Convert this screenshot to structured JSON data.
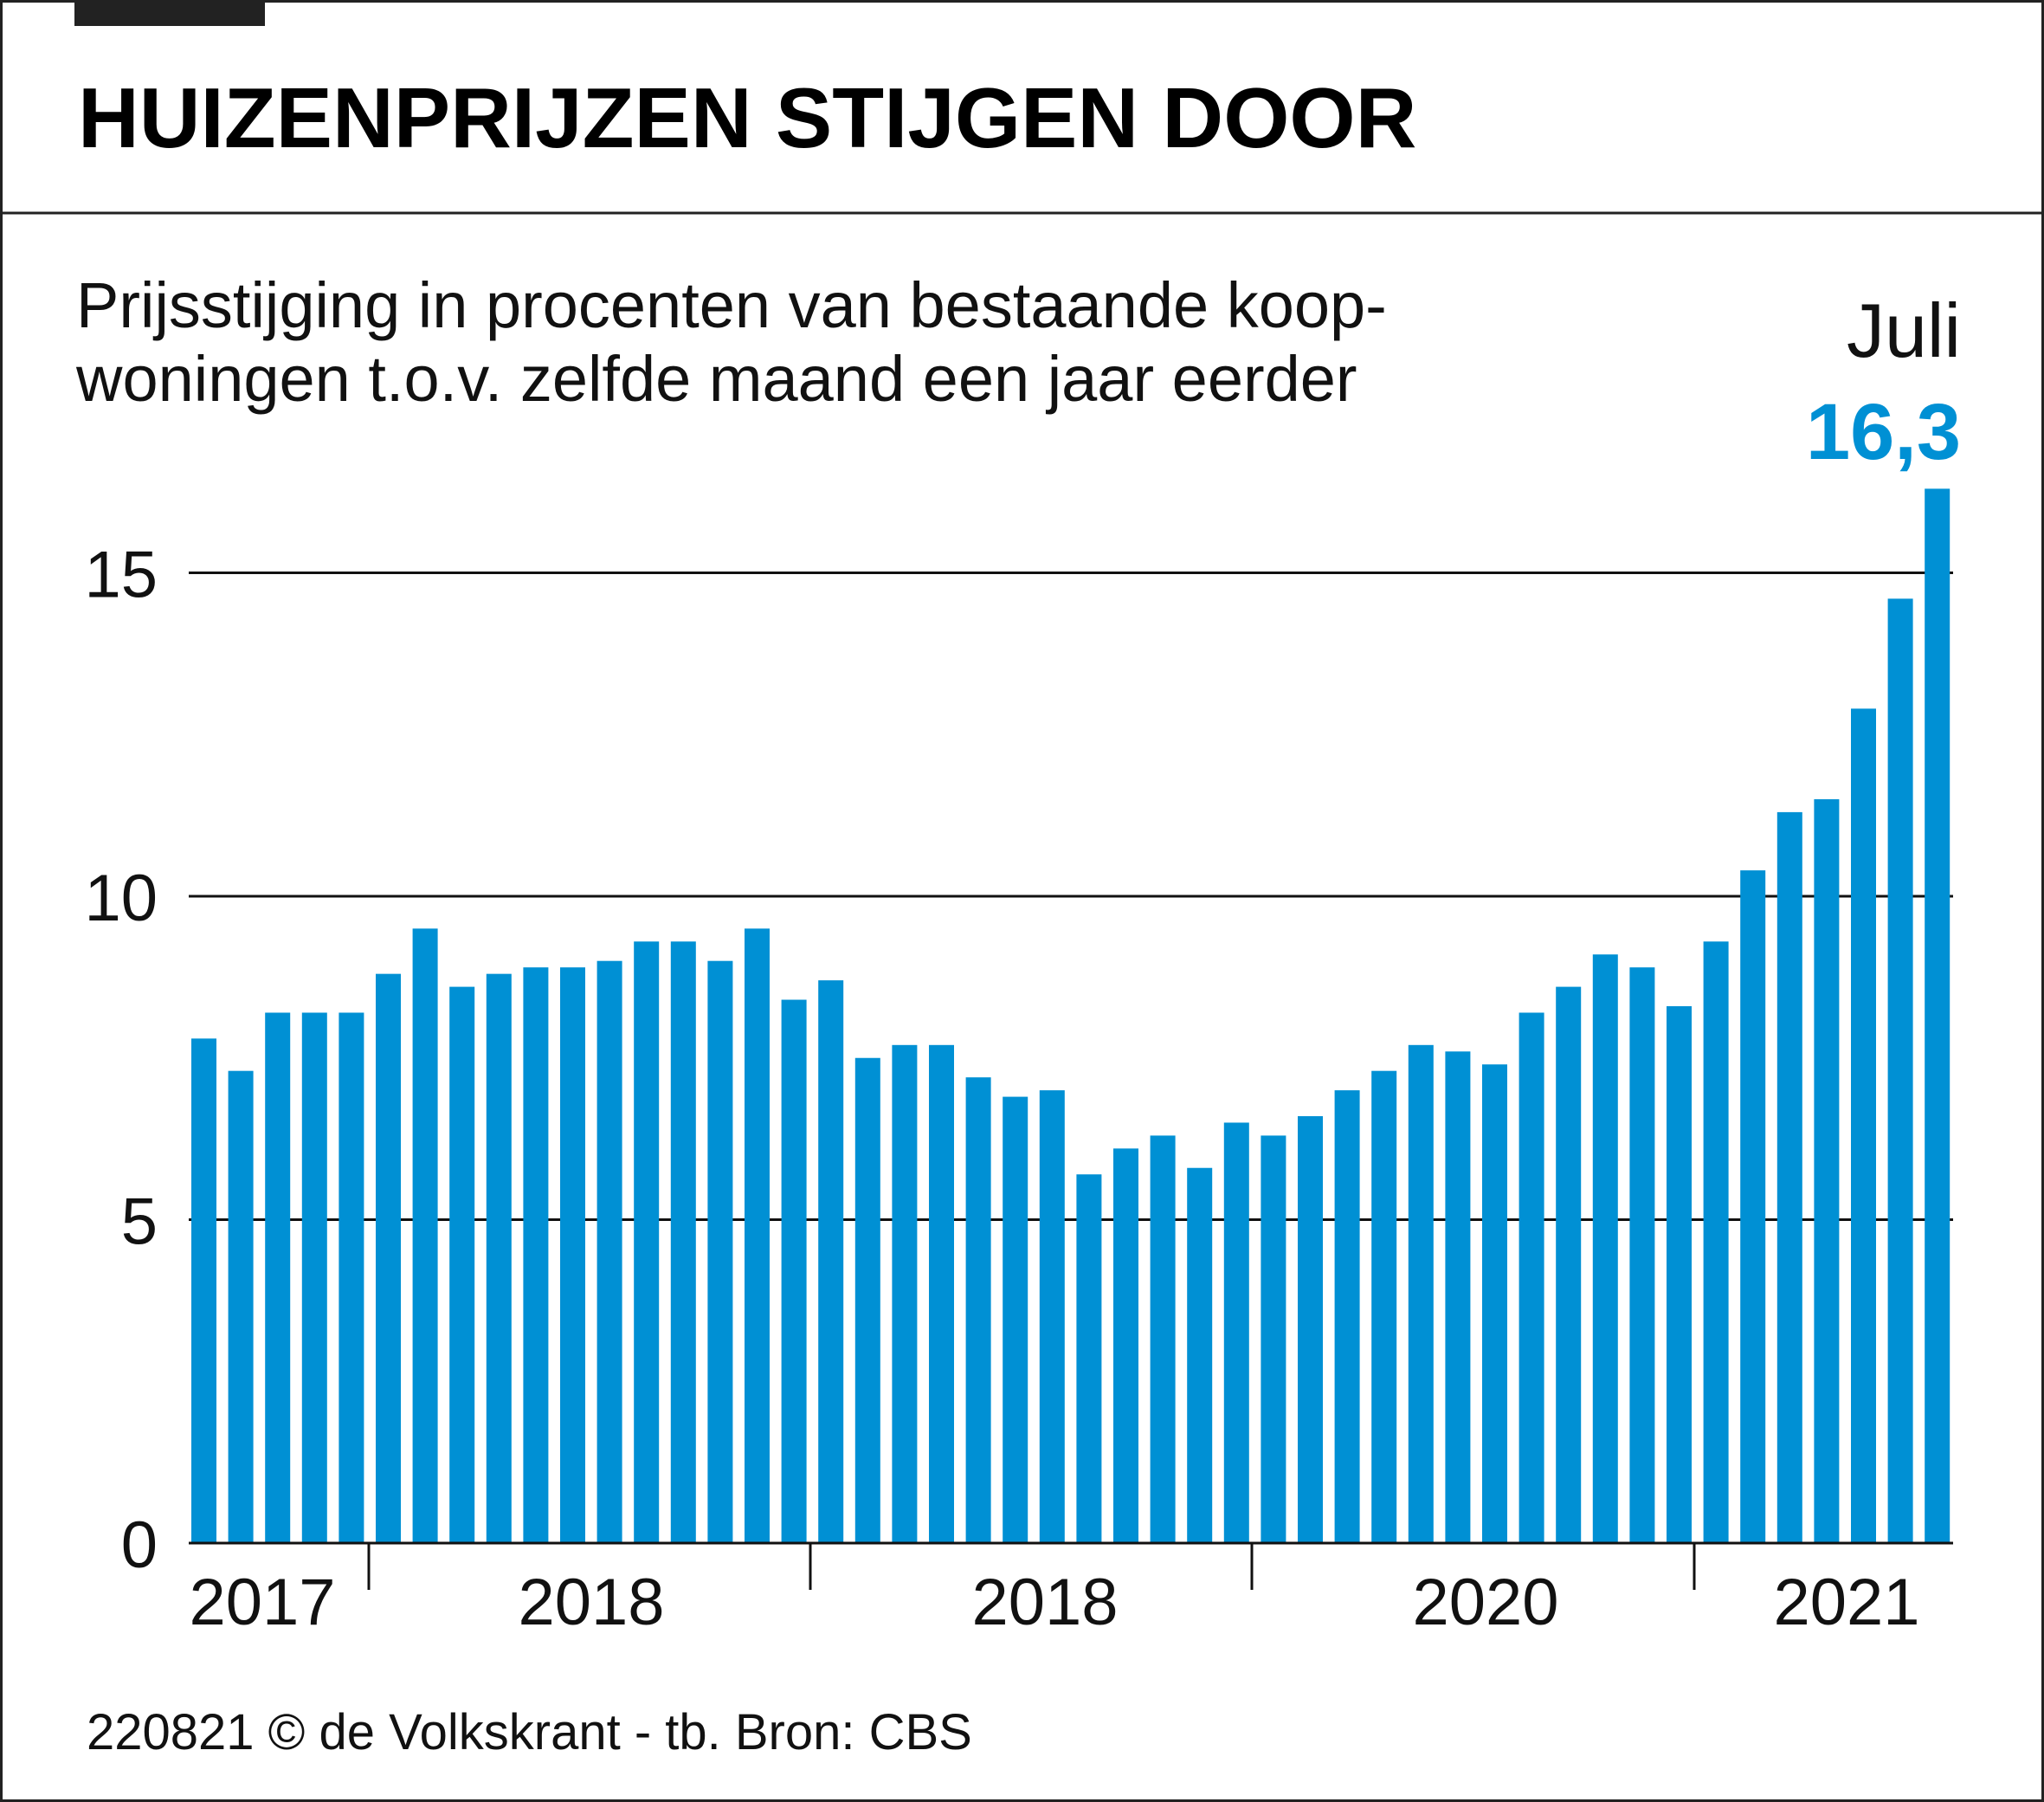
{
  "title": "HUIZENPRIJZEN STIJGEN DOOR",
  "subtitle": [
    "Prijsstijging in procenten van bestaande koop-",
    "woningen t.o.v. zelfde maand een jaar eerder"
  ],
  "highlight": {
    "label": "Juli",
    "value": "16,3",
    "color": "#0090d4"
  },
  "footer": "220821 © de Volkskrant - tb. Bron: CBS",
  "chart_data": {
    "type": "bar",
    "title": "HUIZENPRIJZEN STIJGEN DOOR",
    "ylim": [
      0,
      16.3
    ],
    "yticks": [
      "0",
      "5",
      "10",
      "15"
    ],
    "ytick_values": [
      0,
      5,
      10,
      15
    ],
    "grid": true,
    "xtick_labels": [
      "2017",
      "2018",
      "2018",
      "2020",
      "2021"
    ],
    "bar_color": "#0090d4",
    "values": [
      7.8,
      7.3,
      8.2,
      8.2,
      8.2,
      8.8,
      9.5,
      8.6,
      8.8,
      8.9,
      8.9,
      9.0,
      9.3,
      9.3,
      9.0,
      9.5,
      8.4,
      8.7,
      7.5,
      7.7,
      7.7,
      7.2,
      6.9,
      7.0,
      5.7,
      6.1,
      6.3,
      5.8,
      6.5,
      6.3,
      6.6,
      7.0,
      7.3,
      7.7,
      7.6,
      7.4,
      8.2,
      8.6,
      9.1,
      8.9,
      8.3,
      9.3,
      10.4,
      11.3,
      11.5,
      12.9,
      14.6,
      16.3
    ]
  }
}
